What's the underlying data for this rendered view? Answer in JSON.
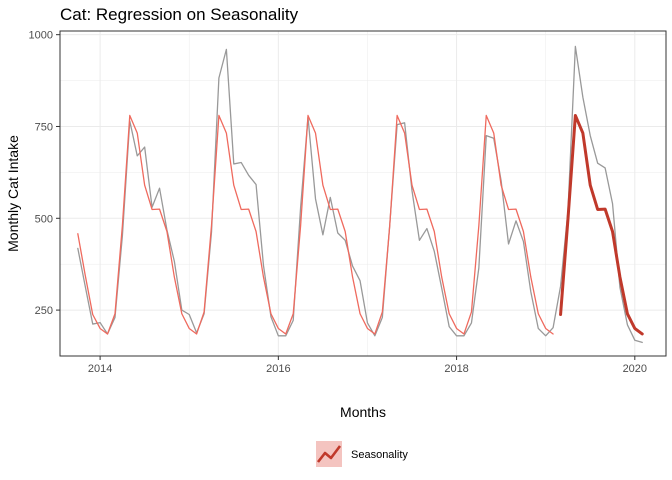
{
  "chart_data": {
    "type": "line",
    "title": "Cat: Regression on Seasonality",
    "xlabel": "Months",
    "ylabel": "Monthly Cat Intake",
    "xlim": [
      2013.55,
      2020.35
    ],
    "ylim": [
      125,
      1010
    ],
    "x_ticks": [
      2014,
      2016,
      2018,
      2020
    ],
    "x_tick_labels": [
      "2014",
      "2016",
      "2018",
      "2020"
    ],
    "y_ticks": [
      250,
      500,
      750,
      1000
    ],
    "y_tick_labels": [
      "250",
      "500",
      "750",
      "1000"
    ],
    "grid": true,
    "legend": {
      "position": "bottom",
      "entries": [
        "Seasonality"
      ]
    },
    "colors": {
      "actual": "#999999",
      "fitted": "#ef6a5e",
      "forecast": "#c0392b",
      "legend_key_bg": "#f4c4c0",
      "grid": "#ebebeb",
      "panel_border": "#333333"
    },
    "series": [
      {
        "role": "actual",
        "x": [
          2013.75,
          2013.833,
          2013.917,
          2014.0,
          2014.083,
          2014.167,
          2014.25,
          2014.333,
          2014.417,
          2014.5,
          2014.583,
          2014.667,
          2014.75,
          2014.833,
          2014.917,
          2015.0,
          2015.083,
          2015.167,
          2015.25,
          2015.333,
          2015.417,
          2015.5,
          2015.583,
          2015.667,
          2015.75,
          2015.833,
          2015.917,
          2016.0,
          2016.083,
          2016.167,
          2016.25,
          2016.333,
          2016.417,
          2016.5,
          2016.583,
          2016.667,
          2016.75,
          2016.833,
          2016.917,
          2017.0,
          2017.083,
          2017.167,
          2017.25,
          2017.333,
          2017.417,
          2017.5,
          2017.583,
          2017.667,
          2017.75,
          2017.833,
          2017.917,
          2018.0,
          2018.083,
          2018.167,
          2018.25,
          2018.333,
          2018.417,
          2018.5,
          2018.583,
          2018.667,
          2018.75,
          2018.833,
          2018.917,
          2019.0,
          2019.083,
          2019.167,
          2019.25,
          2019.333,
          2019.417,
          2019.5,
          2019.583,
          2019.667,
          2019.75,
          2019.833,
          2019.917,
          2020.0,
          2020.083
        ],
        "values": [
          418,
          315,
          212,
          216,
          185,
          230,
          452,
          765,
          670,
          694,
          530,
          582,
          468,
          383,
          250,
          238,
          188,
          240,
          462,
          882,
          960,
          648,
          652,
          617,
          592,
          372,
          232,
          180,
          180,
          222,
          530,
          775,
          553,
          455,
          557,
          460,
          440,
          370,
          330,
          215,
          180,
          230,
          482,
          755,
          760,
          575,
          440,
          472,
          410,
          310,
          205,
          180,
          180,
          215,
          365,
          725,
          718,
          602,
          430,
          493,
          437,
          300,
          200,
          180,
          202,
          315,
          520,
          968,
          830,
          725,
          650,
          637,
          540,
          312,
          210,
          168,
          162
        ]
      },
      {
        "role": "fitted",
        "x": [
          2013.75,
          2013.833,
          2013.917,
          2014.0,
          2014.083,
          2014.167,
          2014.25,
          2014.333,
          2014.417,
          2014.5,
          2014.583,
          2014.667,
          2014.75,
          2014.833,
          2014.917,
          2015.0,
          2015.083,
          2015.167,
          2015.25,
          2015.333,
          2015.417,
          2015.5,
          2015.583,
          2015.667,
          2015.75,
          2015.833,
          2015.917,
          2016.0,
          2016.083,
          2016.167,
          2016.25,
          2016.333,
          2016.417,
          2016.5,
          2016.583,
          2016.667,
          2016.75,
          2016.833,
          2016.917,
          2017.0,
          2017.083,
          2017.167,
          2017.25,
          2017.333,
          2017.417,
          2017.5,
          2017.583,
          2017.667,
          2017.75,
          2017.833,
          2017.917,
          2018.0,
          2018.083,
          2018.167,
          2018.25,
          2018.333,
          2018.417,
          2018.5,
          2018.583,
          2018.667,
          2018.75,
          2018.833,
          2018.917,
          2019.0,
          2019.083
        ],
        "values": [
          458,
          345,
          238,
          200,
          185,
          240,
          480,
          780,
          732,
          590,
          524,
          525,
          464,
          340,
          240,
          200,
          185,
          245,
          480,
          780,
          732,
          590,
          524,
          525,
          464,
          340,
          240,
          200,
          185,
          240,
          480,
          780,
          732,
          590,
          524,
          525,
          464,
          340,
          240,
          200,
          185,
          245,
          480,
          780,
          732,
          590,
          524,
          525,
          464,
          340,
          240,
          200,
          185,
          245,
          480,
          780,
          732,
          590,
          524,
          525,
          464,
          340,
          240,
          200,
          185
        ]
      },
      {
        "name": "Seasonality",
        "role": "forecast",
        "x": [
          2019.167,
          2019.25,
          2019.333,
          2019.417,
          2019.5,
          2019.583,
          2019.667,
          2019.75,
          2019.833,
          2019.917,
          2020.0,
          2020.083
        ],
        "values": [
          238,
          498,
          780,
          732,
          590,
          524,
          525,
          464,
          340,
          240,
          200,
          185
        ]
      }
    ]
  }
}
